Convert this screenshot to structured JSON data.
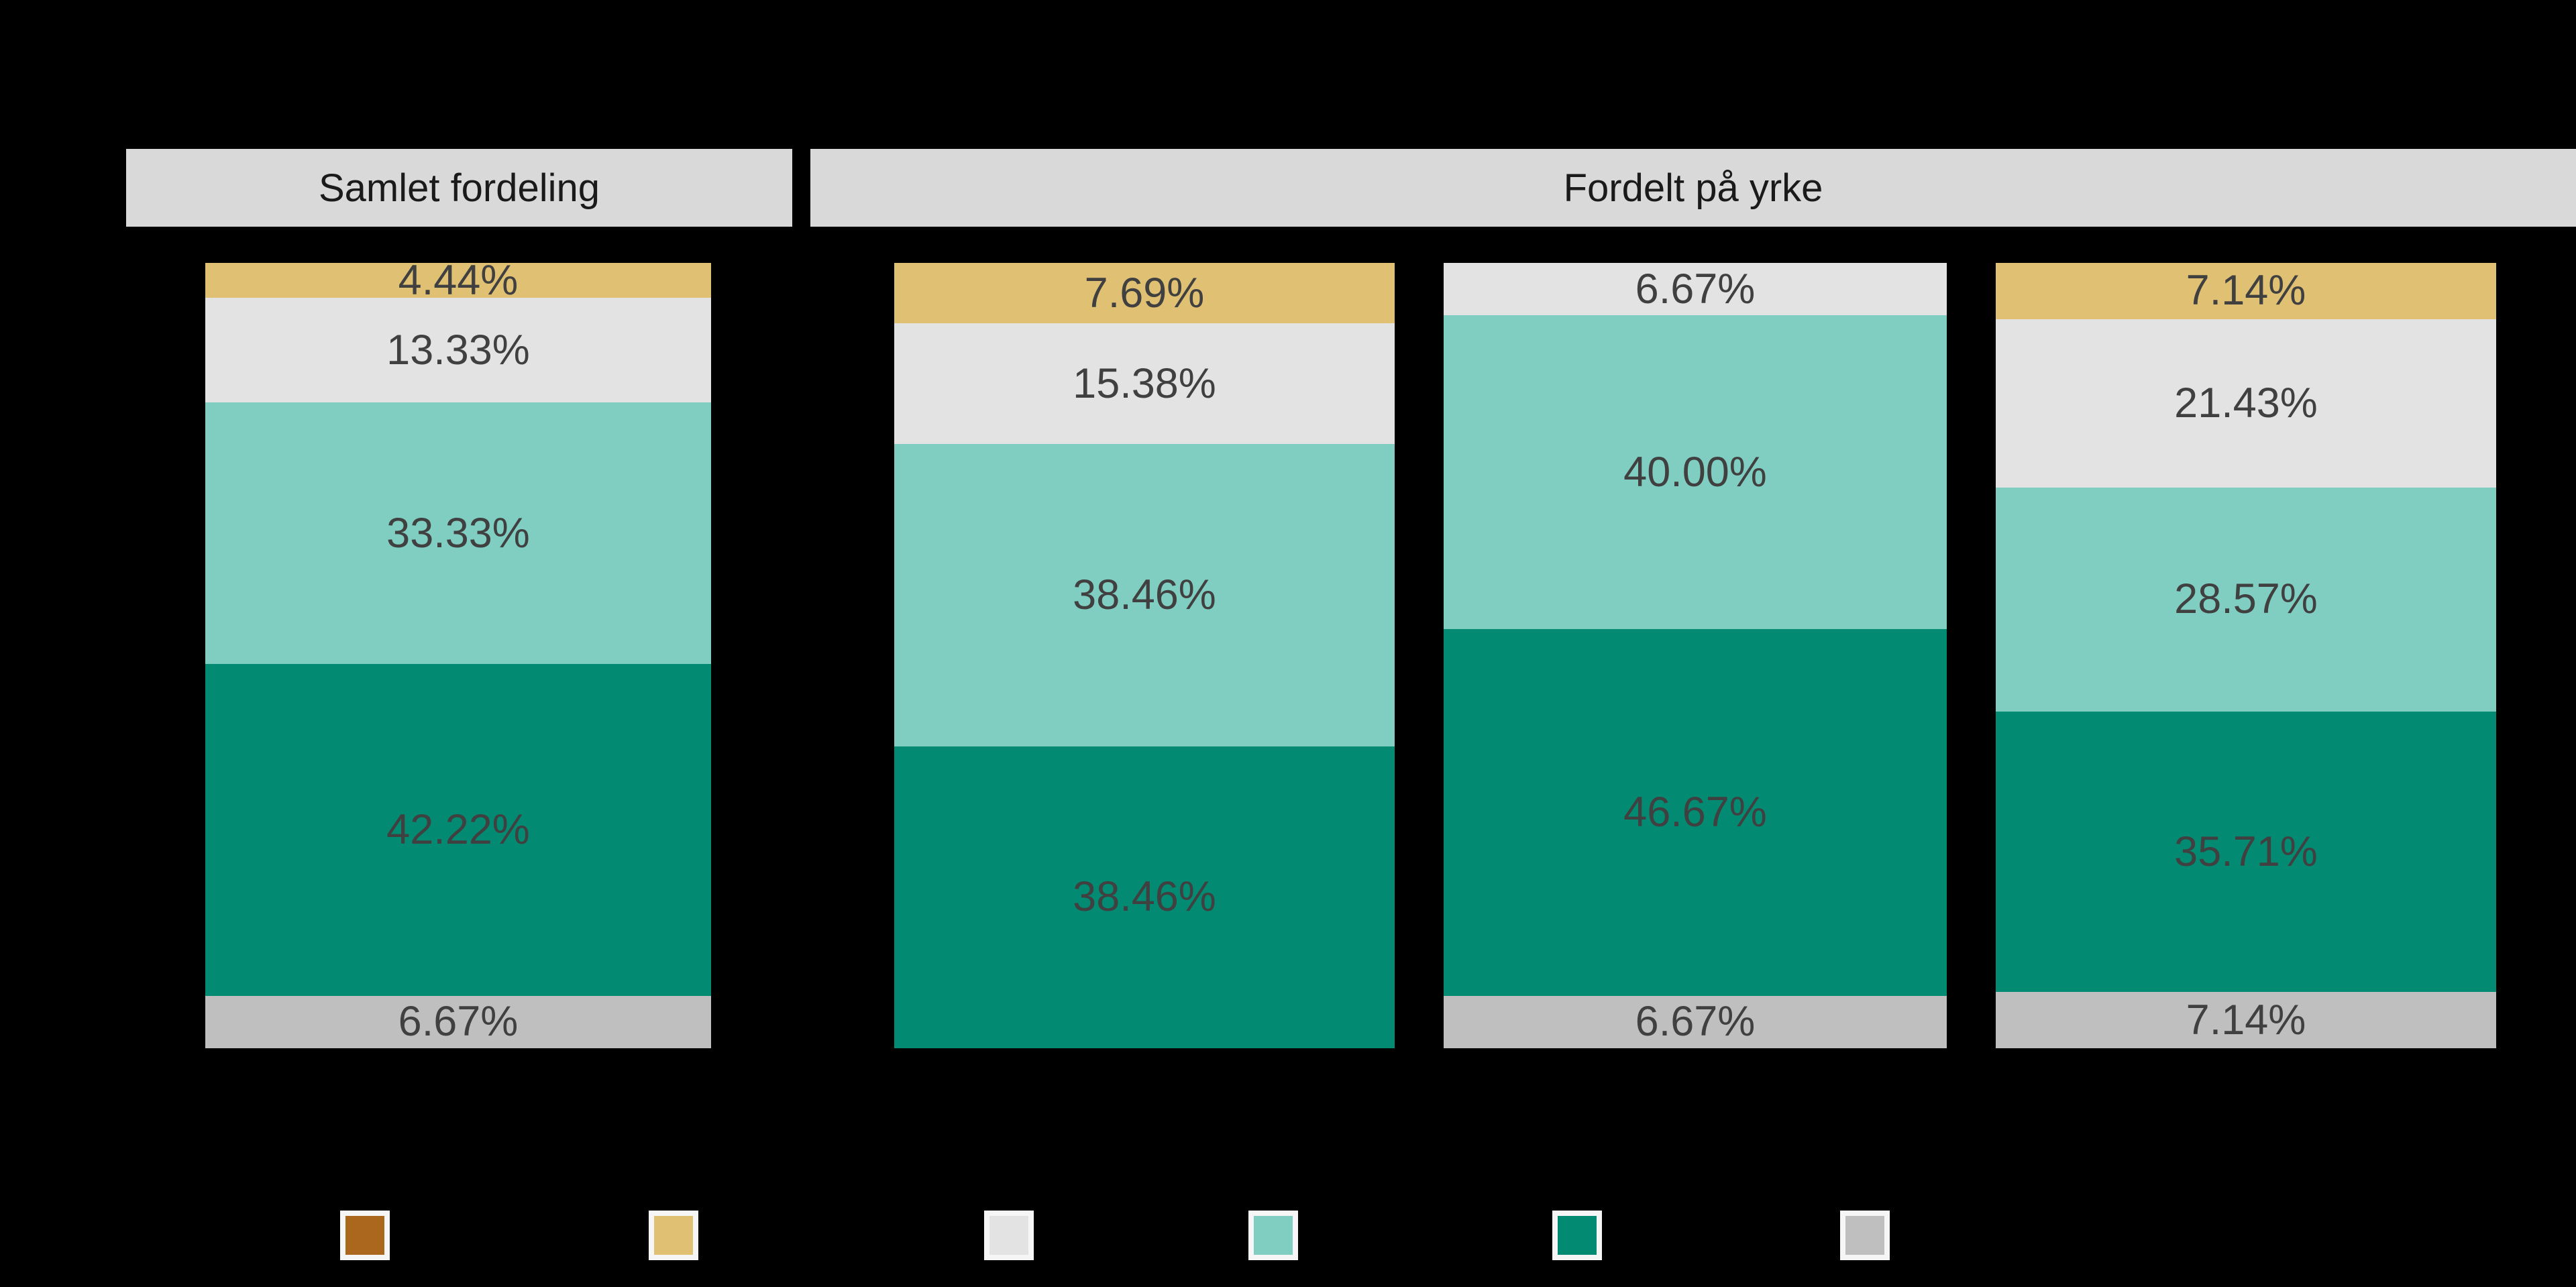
{
  "colors": {
    "background": "#000000",
    "panel_header_bg": "#d9d9d9",
    "panel_header_text": "#1a1a1a",
    "segment_label_text": "#404040",
    "series": {
      "brown": "#ab671e",
      "gold": "#e0c173",
      "light-gray": "#e3e3e3",
      "light-teal": "#80cdc1",
      "dark-teal": "#028a72",
      "gray": "#bfbfbf"
    }
  },
  "headers": [
    {
      "label": "Samlet fordeling"
    },
    {
      "label": "Fordelt på yrke"
    }
  ],
  "chart_data": {
    "type": "bar",
    "subtype": "100%-stacked-vertical-columns",
    "background": "black, no visible title, axes or tick labels",
    "panels": [
      {
        "title": "Samlet fordeling",
        "bars": [
          {
            "segments": [
              {
                "color": "gold",
                "value": 4.44,
                "label": "4.44%"
              },
              {
                "color": "light-gray",
                "value": 13.33,
                "label": "13.33%"
              },
              {
                "color": "light-teal",
                "value": 33.33,
                "label": "33.33%"
              },
              {
                "color": "dark-teal",
                "value": 42.22,
                "label": "42.22%"
              },
              {
                "color": "gray",
                "value": 6.67,
                "label": "6.67%"
              }
            ]
          }
        ]
      },
      {
        "title": "Fordelt på yrke",
        "bars": [
          {
            "segments": [
              {
                "color": "gold",
                "value": 7.69,
                "label": "7.69%"
              },
              {
                "color": "light-gray",
                "value": 15.38,
                "label": "15.38%"
              },
              {
                "color": "light-teal",
                "value": 38.46,
                "label": "38.46%"
              },
              {
                "color": "dark-teal",
                "value": 38.46,
                "label": "38.46%"
              }
            ]
          },
          {
            "segments": [
              {
                "color": "light-gray",
                "value": 6.67,
                "label": "6.67%"
              },
              {
                "color": "light-teal",
                "value": 40.0,
                "label": "40.00%"
              },
              {
                "color": "dark-teal",
                "value": 46.67,
                "label": "46.67%"
              },
              {
                "color": "gray",
                "value": 6.67,
                "label": "6.67%"
              }
            ]
          },
          {
            "segments": [
              {
                "color": "gold",
                "value": 7.14,
                "label": "7.14%"
              },
              {
                "color": "light-gray",
                "value": 21.43,
                "label": "21.43%"
              },
              {
                "color": "light-teal",
                "value": 28.57,
                "label": "28.57%"
              },
              {
                "color": "dark-teal",
                "value": 35.71,
                "label": "35.71%"
              },
              {
                "color": "gray",
                "value": 7.14,
                "label": "7.14%"
              }
            ]
          }
        ]
      }
    ],
    "legend": {
      "position": "bottom",
      "labels_visible": false,
      "items": [
        {
          "color": "brown"
        },
        {
          "color": "gold"
        },
        {
          "color": "light-gray"
        },
        {
          "color": "light-teal"
        },
        {
          "color": "dark-teal"
        },
        {
          "color": "gray"
        }
      ]
    }
  }
}
